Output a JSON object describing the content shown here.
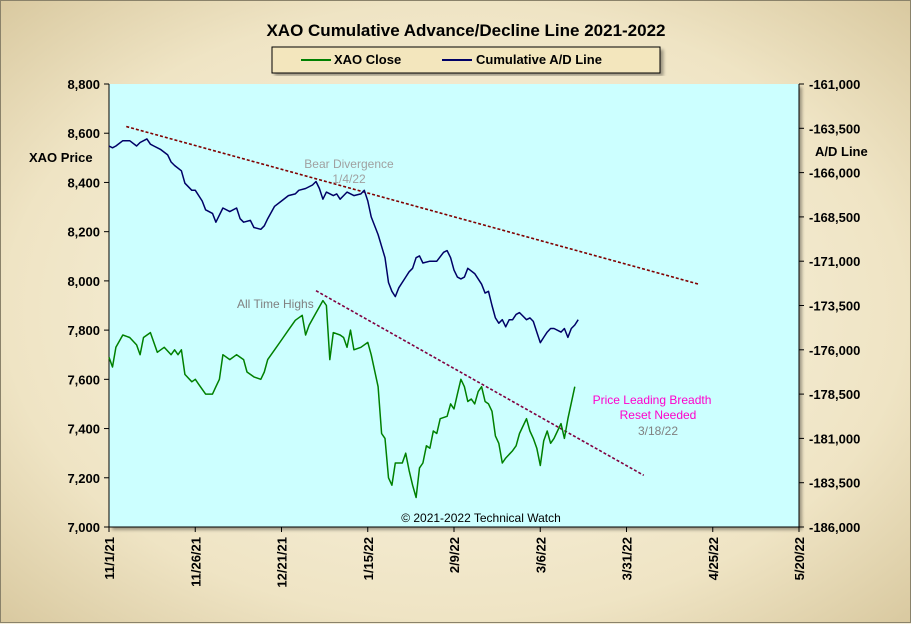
{
  "chart_data": {
    "type": "line",
    "title": "XAO Cumulative Advance/Decline Line 2021-2022",
    "y_left_label": "XAO Price",
    "y_right_label": "A/D Line",
    "y_left_range": [
      7000,
      8800
    ],
    "y_right_range": [
      -186000,
      -161000
    ],
    "y_left_ticks": [
      "8,800",
      "8,600",
      "8,400",
      "8,200",
      "8,000",
      "7,800",
      "7,600",
      "7,400",
      "7,200",
      "7,000"
    ],
    "y_right_ticks": [
      "-161,000",
      "-163,500",
      "-166,000",
      "-168,500",
      "-171,000",
      "-173,500",
      "-176,000",
      "-178,500",
      "-181,000",
      "-183,500",
      "-186,000"
    ],
    "x_ticks": [
      "11/1/21",
      "11/26/21",
      "12/21/21",
      "1/15/22",
      "2/9/22",
      "3/6/22",
      "3/31/22",
      "4/25/22",
      "5/20/22"
    ],
    "x_range_days": [
      0,
      200
    ],
    "grid": false,
    "legend_position": "top-center",
    "background_color": "#ccffff",
    "series": [
      {
        "name": "XAO Close",
        "axis": "left",
        "color": "#008000",
        "points": [
          [
            0,
            7690
          ],
          [
            1,
            7650
          ],
          [
            2,
            7730
          ],
          [
            4,
            7780
          ],
          [
            6,
            7770
          ],
          [
            8,
            7740
          ],
          [
            9,
            7700
          ],
          [
            10,
            7770
          ],
          [
            12,
            7790
          ],
          [
            14,
            7710
          ],
          [
            16,
            7730
          ],
          [
            18,
            7700
          ],
          [
            19,
            7720
          ],
          [
            20,
            7700
          ],
          [
            21,
            7720
          ],
          [
            22,
            7620
          ],
          [
            24,
            7590
          ],
          [
            25,
            7600
          ],
          [
            26,
            7580
          ],
          [
            28,
            7540
          ],
          [
            30,
            7540
          ],
          [
            31,
            7570
          ],
          [
            32,
            7600
          ],
          [
            33,
            7700
          ],
          [
            35,
            7680
          ],
          [
            37,
            7700
          ],
          [
            39,
            7680
          ],
          [
            40,
            7630
          ],
          [
            42,
            7610
          ],
          [
            44,
            7600
          ],
          [
            45,
            7630
          ],
          [
            46,
            7680
          ],
          [
            48,
            7720
          ],
          [
            50,
            7760
          ],
          [
            52,
            7800
          ],
          [
            54,
            7840
          ],
          [
            56,
            7860
          ],
          [
            57,
            7780
          ],
          [
            58,
            7820
          ],
          [
            60,
            7870
          ],
          [
            62,
            7920
          ],
          [
            63,
            7900
          ],
          [
            64,
            7680
          ],
          [
            65,
            7790
          ],
          [
            67,
            7780
          ],
          [
            68,
            7770
          ],
          [
            69,
            7730
          ],
          [
            70,
            7800
          ],
          [
            71,
            7720
          ],
          [
            73,
            7730
          ],
          [
            75,
            7750
          ],
          [
            76,
            7700
          ],
          [
            78,
            7570
          ],
          [
            79,
            7380
          ],
          [
            80,
            7360
          ],
          [
            81,
            7200
          ],
          [
            82,
            7170
          ],
          [
            83,
            7260
          ],
          [
            85,
            7260
          ],
          [
            86,
            7300
          ],
          [
            87,
            7230
          ],
          [
            88,
            7170
          ],
          [
            89,
            7120
          ],
          [
            90,
            7240
          ],
          [
            91,
            7260
          ],
          [
            92,
            7330
          ],
          [
            93,
            7320
          ],
          [
            94,
            7390
          ],
          [
            95,
            7380
          ],
          [
            96,
            7440
          ],
          [
            98,
            7450
          ],
          [
            99,
            7500
          ],
          [
            100,
            7480
          ],
          [
            101,
            7540
          ],
          [
            102,
            7600
          ],
          [
            103,
            7570
          ],
          [
            104,
            7510
          ],
          [
            105,
            7520
          ],
          [
            106,
            7500
          ],
          [
            107,
            7550
          ],
          [
            108,
            7570
          ],
          [
            109,
            7510
          ],
          [
            110,
            7500
          ],
          [
            111,
            7470
          ],
          [
            112,
            7370
          ],
          [
            113,
            7340
          ],
          [
            114,
            7260
          ],
          [
            115,
            7280
          ],
          [
            117,
            7310
          ],
          [
            118,
            7330
          ],
          [
            119,
            7380
          ],
          [
            121,
            7440
          ],
          [
            122,
            7390
          ],
          [
            123,
            7360
          ],
          [
            124,
            7320
          ],
          [
            125,
            7250
          ],
          [
            126,
            7350
          ],
          [
            127,
            7390
          ],
          [
            128,
            7340
          ],
          [
            129,
            7360
          ],
          [
            130,
            7390
          ],
          [
            131,
            7420
          ],
          [
            132,
            7360
          ],
          [
            133,
            7440
          ],
          [
            135,
            7570
          ]
        ]
      },
      {
        "name": "Cumulative A/D Line",
        "axis": "right",
        "color": "#000066",
        "points": [
          [
            0,
            -164500
          ],
          [
            1,
            -164600
          ],
          [
            2,
            -164500
          ],
          [
            4,
            -164200
          ],
          [
            6,
            -164200
          ],
          [
            8,
            -164500
          ],
          [
            9,
            -164300
          ],
          [
            11,
            -164100
          ],
          [
            12,
            -164400
          ],
          [
            13,
            -164500
          ],
          [
            15,
            -164700
          ],
          [
            17,
            -165000
          ],
          [
            18,
            -165400
          ],
          [
            19,
            -165600
          ],
          [
            21,
            -165900
          ],
          [
            22,
            -166600
          ],
          [
            24,
            -167000
          ],
          [
            25,
            -167000
          ],
          [
            27,
            -167600
          ],
          [
            28,
            -168100
          ],
          [
            30,
            -168300
          ],
          [
            31,
            -168800
          ],
          [
            32,
            -168400
          ],
          [
            33,
            -168000
          ],
          [
            35,
            -168200
          ],
          [
            37,
            -168000
          ],
          [
            38,
            -168600
          ],
          [
            39,
            -168800
          ],
          [
            41,
            -168700
          ],
          [
            42,
            -169100
          ],
          [
            44,
            -169200
          ],
          [
            45,
            -169000
          ],
          [
            46,
            -168600
          ],
          [
            48,
            -167900
          ],
          [
            50,
            -167600
          ],
          [
            52,
            -167300
          ],
          [
            54,
            -167200
          ],
          [
            55,
            -167000
          ],
          [
            57,
            -166900
          ],
          [
            59,
            -166700
          ],
          [
            60,
            -166500
          ],
          [
            61,
            -166900
          ],
          [
            62,
            -167500
          ],
          [
            63,
            -167100
          ],
          [
            65,
            -167300
          ],
          [
            66,
            -167200
          ],
          [
            67,
            -167500
          ],
          [
            68,
            -167300
          ],
          [
            69,
            -167100
          ],
          [
            71,
            -167300
          ],
          [
            73,
            -167200
          ],
          [
            74,
            -167000
          ],
          [
            75,
            -167600
          ],
          [
            76,
            -168500
          ],
          [
            78,
            -169500
          ],
          [
            80,
            -170800
          ],
          [
            81,
            -172200
          ],
          [
            82,
            -172700
          ],
          [
            83,
            -173000
          ],
          [
            84,
            -172500
          ],
          [
            86,
            -171900
          ],
          [
            87,
            -171600
          ],
          [
            88,
            -171400
          ],
          [
            89,
            -170800
          ],
          [
            90,
            -170700
          ],
          [
            91,
            -171100
          ],
          [
            93,
            -171000
          ],
          [
            95,
            -171000
          ],
          [
            97,
            -170500
          ],
          [
            98,
            -170400
          ],
          [
            99,
            -170800
          ],
          [
            100,
            -171500
          ],
          [
            101,
            -171900
          ],
          [
            102,
            -172000
          ],
          [
            103,
            -171900
          ],
          [
            104,
            -171400
          ],
          [
            106,
            -171700
          ],
          [
            107,
            -172000
          ],
          [
            108,
            -172300
          ],
          [
            109,
            -172800
          ],
          [
            110,
            -172700
          ],
          [
            111,
            -173500
          ],
          [
            112,
            -174200
          ],
          [
            113,
            -174500
          ],
          [
            114,
            -174300
          ],
          [
            115,
            -174700
          ],
          [
            116,
            -174300
          ],
          [
            117,
            -174300
          ],
          [
            118,
            -174000
          ],
          [
            119,
            -173900
          ],
          [
            120,
            -174100
          ],
          [
            121,
            -174300
          ],
          [
            122,
            -174200
          ],
          [
            123,
            -174400
          ],
          [
            124,
            -175000
          ],
          [
            125,
            -175600
          ],
          [
            126,
            -175300
          ],
          [
            127,
            -175000
          ],
          [
            128,
            -174800
          ],
          [
            129,
            -174800
          ],
          [
            131,
            -175000
          ],
          [
            132,
            -174800
          ],
          [
            133,
            -175300
          ],
          [
            134,
            -174800
          ],
          [
            135,
            -174600
          ],
          [
            136,
            -174300
          ]
        ]
      }
    ],
    "trendlines": [
      {
        "axis": "right",
        "from": [
          5,
          -163400
        ],
        "to": [
          171,
          -172300
        ],
        "color": "#800000"
      },
      {
        "axis": "left",
        "from": [
          60,
          7960
        ],
        "to": [
          155,
          7210
        ],
        "color": "#800040"
      }
    ],
    "annotations": [
      {
        "lines": [
          "Bear Divergence",
          "1/4/22"
        ],
        "color": "#a0a0a0"
      },
      {
        "lines": [
          "All Time Highs"
        ],
        "color": "#808080"
      },
      {
        "lines": [
          "Price Leading Breadth",
          "Reset Needed"
        ],
        "color": "#ff00cc"
      },
      {
        "lines": [
          "3/18/22"
        ],
        "color": "#808080"
      },
      {
        "lines": [
          "© 2021-2022  Technical Watch"
        ],
        "color": "#000000"
      }
    ]
  }
}
